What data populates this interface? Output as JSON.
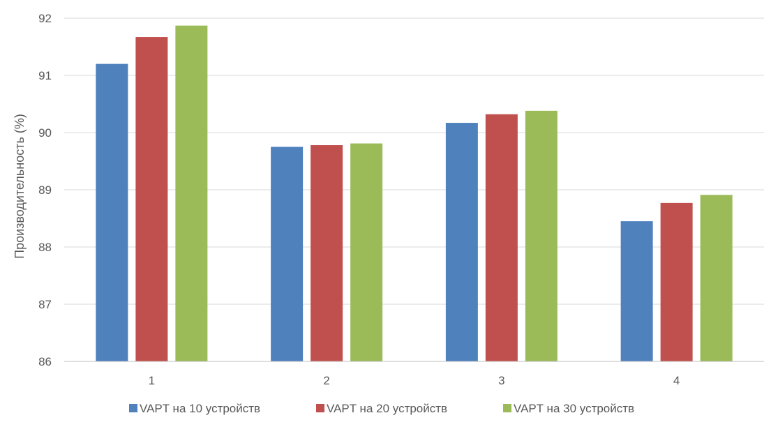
{
  "chart_data": {
    "type": "bar",
    "title": "",
    "xlabel": "",
    "ylabel": "Производительность (%)",
    "categories": [
      "1",
      "2",
      "3",
      "4"
    ],
    "ylim": [
      86,
      92
    ],
    "yticks": [
      86,
      87,
      88,
      89,
      90,
      91,
      92
    ],
    "grid": true,
    "legend_position": "bottom",
    "series": [
      {
        "name": "VAPT на 10 устройств",
        "color": "#4f81bd",
        "values": [
          91.2,
          89.75,
          90.17,
          88.45
        ]
      },
      {
        "name": "VAPT на 20 устройств",
        "color": "#c0504d",
        "values": [
          91.67,
          89.78,
          90.32,
          88.77
        ]
      },
      {
        "name": "VAPT на 30 устройств",
        "color": "#9bbb59",
        "values": [
          91.87,
          89.81,
          90.38,
          88.91
        ]
      }
    ]
  }
}
